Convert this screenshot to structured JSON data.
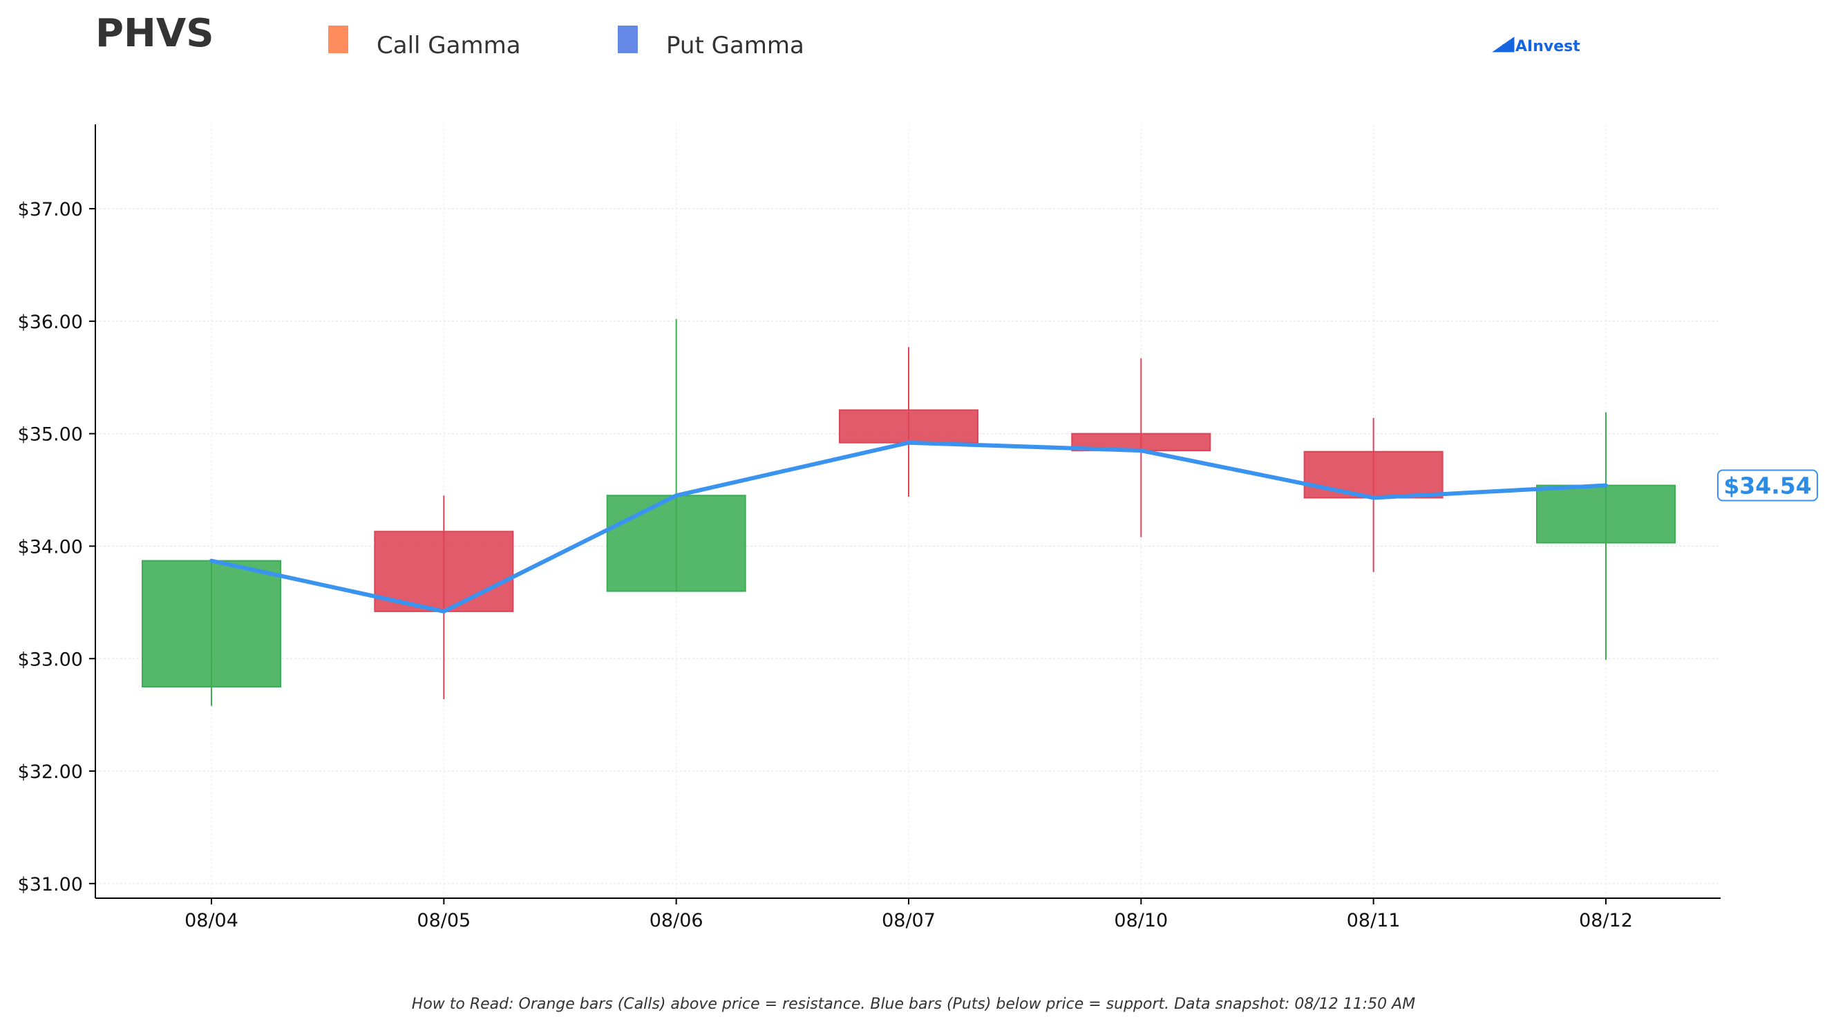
{
  "header": {
    "ticker": "PHVS",
    "brand": "AInvest"
  },
  "footnote": "How to Read: Orange bars (Calls) above price = resistance. Blue bars (Puts) below price = support. Data snapshot: 08/12 11:50 AM",
  "colors": {
    "up": "#3cad55",
    "down": "#de4455",
    "line": "#3a93ee",
    "call": "#fe8c5c",
    "put": "#6688e6",
    "brand": "#1565e0"
  },
  "chart_data": {
    "type": "candlestick",
    "legend": [
      {
        "name": "Call Gamma",
        "color": "#fe8c5c"
      },
      {
        "name": "Put Gamma",
        "color": "#6688e6"
      }
    ],
    "legend_position": "top-left",
    "categories": [
      "08/04",
      "08/05",
      "08/06",
      "08/07",
      "08/10",
      "08/11",
      "08/12"
    ],
    "candles": [
      {
        "date": "08/04",
        "open": 32.75,
        "high": 33.87,
        "low": 32.58,
        "close": 33.87
      },
      {
        "date": "08/05",
        "open": 34.13,
        "high": 34.45,
        "low": 32.64,
        "close": 33.42
      },
      {
        "date": "08/06",
        "open": 33.6,
        "high": 36.02,
        "low": 33.6,
        "close": 34.45
      },
      {
        "date": "08/07",
        "open": 35.21,
        "high": 35.77,
        "low": 34.44,
        "close": 34.92
      },
      {
        "date": "08/10",
        "open": 35.0,
        "high": 35.67,
        "low": 34.08,
        "close": 34.85
      },
      {
        "date": "08/11",
        "open": 34.84,
        "high": 35.14,
        "low": 33.77,
        "close": 34.43
      },
      {
        "date": "08/12",
        "open": 34.03,
        "high": 35.19,
        "low": 32.99,
        "close": 34.54
      }
    ],
    "price_line": [
      33.87,
      33.42,
      34.45,
      34.92,
      34.85,
      34.43,
      34.54
    ],
    "current_price_label": "$34.54",
    "y_ticks": [
      "$31.00",
      "$32.00",
      "$33.00",
      "$34.00",
      "$35.00",
      "$36.00",
      "$37.00"
    ],
    "y_tick_values": [
      31,
      32,
      33,
      34,
      35,
      36,
      37
    ],
    "ylim": [
      30.87,
      37.75
    ],
    "grid": true
  }
}
